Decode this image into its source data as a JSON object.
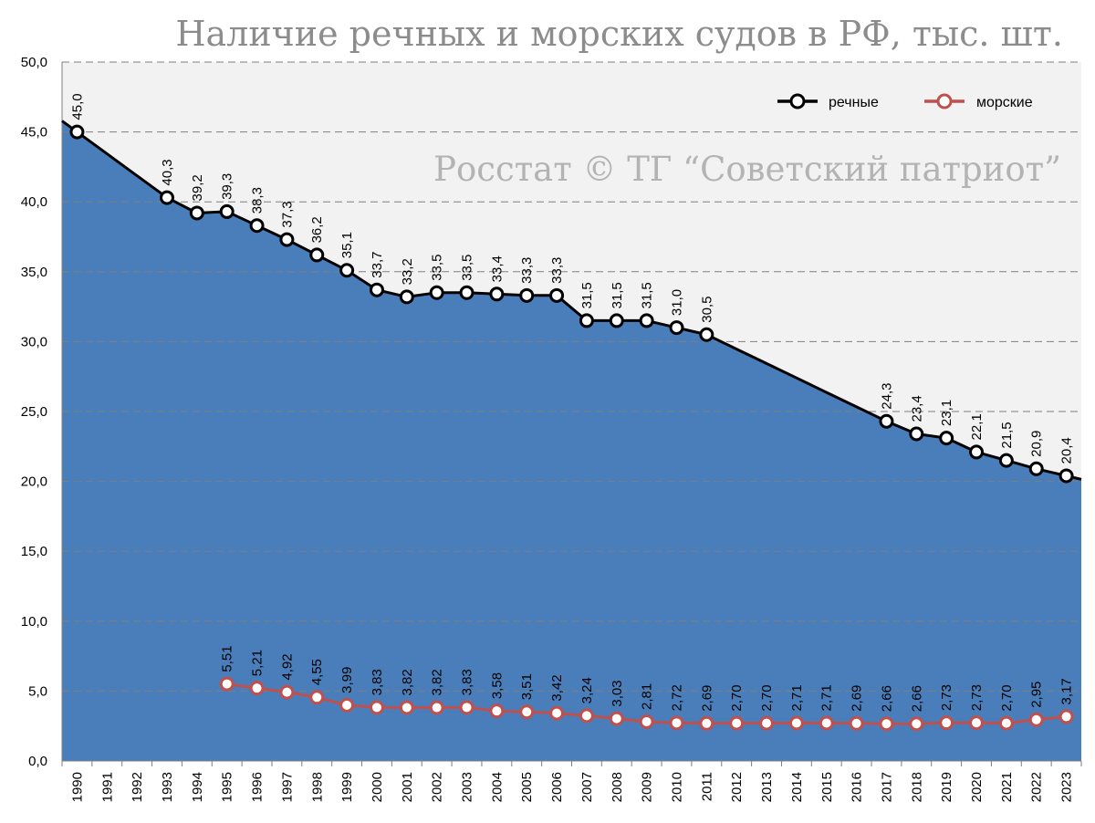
{
  "chart_data": {
    "type": "area",
    "title": "Наличие речных и морских судов в РФ, тыс. шт.",
    "watermark": "Росстат © ТГ “Советский патриот”",
    "ylim": [
      0,
      50
    ],
    "yticks": [
      "0,0",
      "5,0",
      "10,0",
      "15,0",
      "20,0",
      "25,0",
      "30,0",
      "35,0",
      "40,0",
      "45,0",
      "50,0"
    ],
    "categories": [
      "1990",
      "1991",
      "1992",
      "1993",
      "1994",
      "1995",
      "1996",
      "1997",
      "1998",
      "1999",
      "2000",
      "2001",
      "2002",
      "2003",
      "2004",
      "2005",
      "2006",
      "2007",
      "2008",
      "2009",
      "2010",
      "2011",
      "2012",
      "2013",
      "2014",
      "2015",
      "2016",
      "2017",
      "2018",
      "2019",
      "2020",
      "2021",
      "2022",
      "2023"
    ],
    "legend_position": "top-right",
    "grid": true,
    "series": [
      {
        "name": "речные",
        "color": "#000000",
        "fill": "#4a7ebb",
        "values": [
          45.0,
          null,
          null,
          40.3,
          39.2,
          39.3,
          38.3,
          37.3,
          36.2,
          35.1,
          33.7,
          33.2,
          33.5,
          33.5,
          33.4,
          33.3,
          33.3,
          31.5,
          31.5,
          31.5,
          31.0,
          30.5,
          null,
          null,
          null,
          null,
          null,
          24.3,
          23.4,
          23.1,
          22.1,
          21.5,
          20.9,
          20.4
        ],
        "labels": [
          "45,0",
          "",
          "",
          "40,3",
          "39,2",
          "39,3",
          "38,3",
          "37,3",
          "36,2",
          "35,1",
          "33,7",
          "33,2",
          "33,5",
          "33,5",
          "33,4",
          "33,3",
          "33,3",
          "31,5",
          "31,5",
          "31,5",
          "31,0",
          "30,5",
          "",
          "",
          "",
          "",
          "",
          "24,3",
          "23,4",
          "23,1",
          "22,1",
          "21,5",
          "20,9",
          "20,4"
        ]
      },
      {
        "name": "морские",
        "color": "#c0504d",
        "values": [
          null,
          null,
          null,
          null,
          null,
          5.51,
          5.21,
          4.92,
          4.55,
          3.99,
          3.83,
          3.82,
          3.82,
          3.83,
          3.58,
          3.51,
          3.42,
          3.24,
          3.03,
          2.81,
          2.72,
          2.69,
          2.7,
          2.7,
          2.71,
          2.71,
          2.69,
          2.66,
          2.66,
          2.73,
          2.73,
          2.7,
          2.95,
          3.17
        ],
        "labels": [
          "",
          "",
          "",
          "",
          "",
          "5,51",
          "5,21",
          "4,92",
          "4,55",
          "3,99",
          "3,83",
          "3,82",
          "3,82",
          "3,83",
          "3,58",
          "3,51",
          "3,42",
          "3,24",
          "3,03",
          "2,81",
          "2,72",
          "2,69",
          "2,70",
          "2,70",
          "2,71",
          "2,71",
          "2,69",
          "2,66",
          "2,66",
          "2,73",
          "2,73",
          "2,70",
          "2,95",
          "3,17"
        ]
      }
    ]
  }
}
